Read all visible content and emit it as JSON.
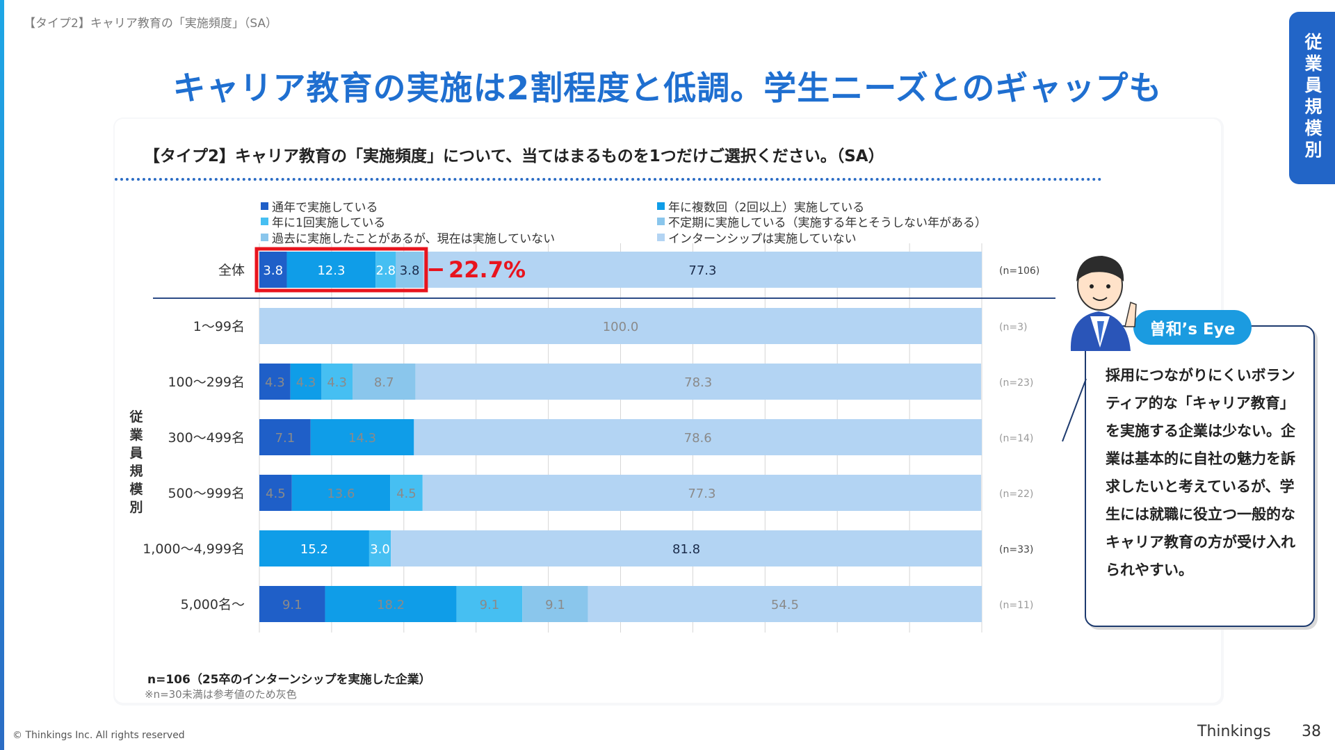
{
  "header": {
    "breadcrumb": "【タイプ2】キャリア教育の「実施頻度」（SA）",
    "headline": "キャリア教育の実施は2割程度と低調。学生ニーズとのギャップも",
    "side_tab": "従業員規模別"
  },
  "question": "【タイプ2】キャリア教育の「実施頻度」について、当てはまるものを1つだけご選択ください。（SA）",
  "highlight_label": "22.7%",
  "callout": {
    "tag": "曽和’s Eye",
    "text": "採用につながりにくいボランティア的な「キャリア教育」を実施する企業は少ない。企業は基本的に自社の魅力を訴求したいと考えているが、学生には就職に役立つ一般的なキャリア教育の方が受け入れられやすい。"
  },
  "footnotes": {
    "n_note": "n=106（25卒のインターンシップを実施した企業）",
    "gray_note": "※n=30未満は参考値のため灰色"
  },
  "footer": {
    "copyright": "© Thinkings Inc. All rights reserved",
    "brand": "Thinkings",
    "page": "38"
  },
  "colors": {
    "s1": "#1f5fc8",
    "s2": "#0f9de8",
    "s3": "#46bff2",
    "s4": "#8ac6ec",
    "s5": "#b3d4f3",
    "highlight": "#e8141e"
  },
  "chart_data": {
    "type": "bar",
    "orientation": "horizontal-stacked-100",
    "group_axis_label": "従業員規模別",
    "categories": [
      "全体",
      "1～99名",
      "100～299名",
      "300～499名",
      "500～999名",
      "1,000～4,999名",
      "5,000名～"
    ],
    "n_labels": [
      "(n=106)",
      "(n=3)",
      "(n=23)",
      "(n=14)",
      "(n=22)",
      "(n=33)",
      "(n=11)"
    ],
    "reference_rows": [
      false,
      true,
      true,
      true,
      true,
      false,
      true
    ],
    "series": [
      {
        "name": "通年で実施している",
        "values": [
          3.8,
          0,
          4.3,
          7.1,
          4.5,
          0,
          9.1
        ]
      },
      {
        "name": "年に複数回（2回以上）実施している",
        "values": [
          12.3,
          0,
          4.3,
          14.3,
          13.6,
          15.2,
          18.2
        ]
      },
      {
        "name": "年に1回実施している",
        "values": [
          2.8,
          0,
          4.3,
          0,
          4.5,
          3.0,
          9.1
        ]
      },
      {
        "name": "不定期に実施している（実施する年とそうしない年がある）",
        "values": [
          3.8,
          0,
          8.7,
          0,
          0,
          0,
          9.1
        ]
      },
      {
        "name": "過去に実施したことがあるが、現在は実施していない",
        "values": [
          0,
          0,
          0,
          0,
          0,
          0,
          0
        ]
      },
      {
        "name": "インターンシップは実施していない",
        "values": [
          77.3,
          100.0,
          78.3,
          78.6,
          77.3,
          81.8,
          54.5
        ]
      }
    ],
    "xlim": [
      0,
      100
    ],
    "grid": true
  }
}
